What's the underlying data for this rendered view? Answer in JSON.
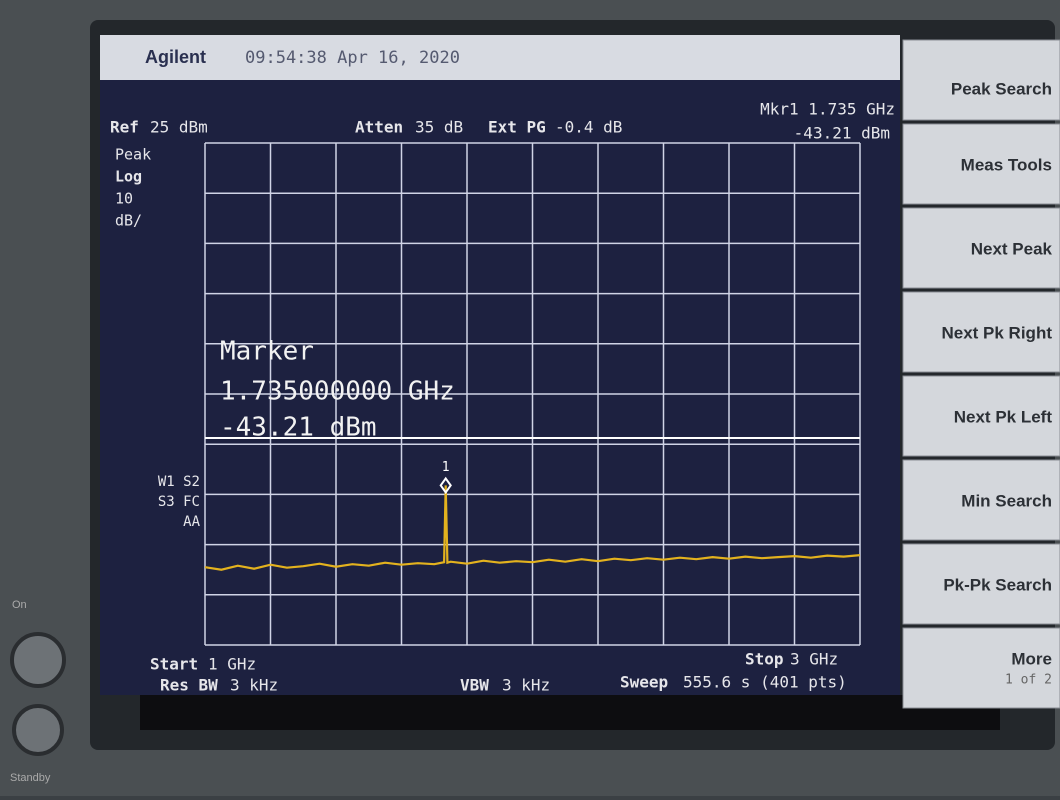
{
  "header": {
    "brand": "Agilent",
    "timestamp": "09:54:38  Apr 16, 2020"
  },
  "settings": {
    "ref_label": "Ref",
    "ref_value": "25 dBm",
    "atten_label": "Atten",
    "atten_value": "35 dB",
    "ext_pg_label": "Ext PG",
    "ext_pg_value": "-0.4 dB",
    "marker_freq": "Mkr1  1.735 GHz",
    "marker_level": "-43.21 dBm"
  },
  "left_labels": [
    "Peak",
    "Log",
    "10",
    "dB/"
  ],
  "status_labels": [
    "W1  S2",
    "S3  FC",
    "AA"
  ],
  "marker_box": {
    "title": "Marker",
    "frequency": "1.735000000 GHz",
    "level": "-43.21 dBm",
    "marker_number": "1"
  },
  "footer": {
    "start_label": "Start",
    "start_value": "1 GHz",
    "rbw_label": "Res BW",
    "rbw_value": "3 kHz",
    "vbw_label": "VBW",
    "vbw_value": "3 kHz",
    "stop_label": "Stop",
    "stop_value": "3 GHz",
    "sweep_label": "Sweep",
    "sweep_value": "555.6 s (401 pts)"
  },
  "softkeys": [
    "Peak Search",
    "Meas Tools",
    "Next Peak",
    "Next Pk Right",
    "Next Pk Left",
    "Min Search",
    "Pk-Pk Search",
    "More"
  ],
  "softkey_page": "1 of 2",
  "bezel": {
    "on": "On",
    "standby": "Standby"
  },
  "trace": {
    "xlim": [
      1,
      3
    ],
    "ylim": [
      -75,
      25
    ],
    "x": [
      1,
      1.05,
      1.1,
      1.15,
      1.2,
      1.25,
      1.3,
      1.35,
      1.4,
      1.45,
      1.5,
      1.55,
      1.6,
      1.65,
      1.7,
      1.73,
      1.735,
      1.74,
      1.75,
      1.8,
      1.85,
      1.9,
      1.95,
      2,
      2.05,
      2.1,
      2.15,
      2.2,
      2.25,
      2.3,
      2.35,
      2.4,
      2.45,
      2.5,
      2.55,
      2.6,
      2.65,
      2.7,
      2.75,
      2.8,
      2.85,
      2.9,
      2.95,
      3
    ],
    "y": [
      -59.5,
      -60,
      -59.2,
      -59.8,
      -59,
      -59.6,
      -59.3,
      -58.8,
      -59.4,
      -58.9,
      -59.2,
      -58.6,
      -59,
      -58.7,
      -58.9,
      -58.5,
      -43.21,
      -58.6,
      -58.4,
      -58.8,
      -58.2,
      -58.6,
      -58.3,
      -58.5,
      -58,
      -58.4,
      -57.9,
      -58.3,
      -57.8,
      -58.1,
      -57.7,
      -58,
      -57.6,
      -57.9,
      -57.5,
      -57.8,
      -57.4,
      -57.7,
      -57.5,
      -57.3,
      -57.6,
      -57.2,
      -57.4,
      -57.1
    ]
  }
}
